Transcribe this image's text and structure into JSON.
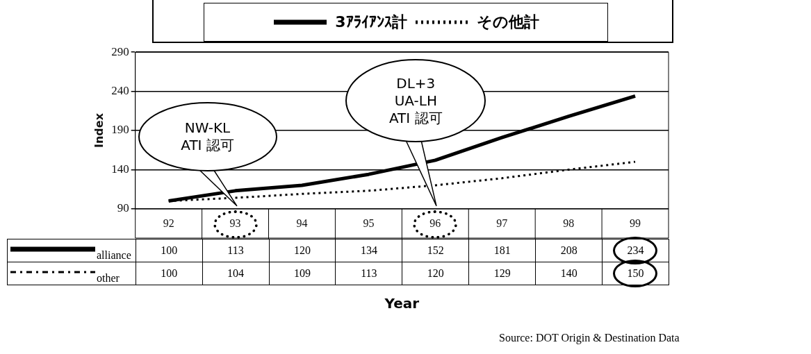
{
  "chart_data": {
    "type": "line",
    "xlabel": "Year",
    "ylabel": "Index",
    "categories": [
      "92",
      "93",
      "94",
      "95",
      "96",
      "97",
      "98",
      "99"
    ],
    "series": [
      {
        "name": "3ｱﾗｲｱﾝｽ計",
        "color": "#000000",
        "line_style": "solid",
        "values": [
          100,
          113,
          120,
          134,
          152,
          181,
          208,
          234
        ]
      },
      {
        "name": "その他計",
        "color": "#000000",
        "line_style": "dotted",
        "values": [
          100,
          104,
          109,
          113,
          120,
          129,
          140,
          150
        ]
      }
    ],
    "ylim": [
      90,
      290
    ],
    "yticks": [
      90,
      140,
      190,
      240,
      290
    ],
    "grid": "y",
    "legend": "top",
    "marker": "none",
    "data_labels": true,
    "annotations": [
      "NW-KL\nATI 認可",
      "DL+3\nUA-LH\nATI 認可",
      "alliance",
      "other",
      "Source: DOT Origin & Destination Data"
    ]
  }
}
